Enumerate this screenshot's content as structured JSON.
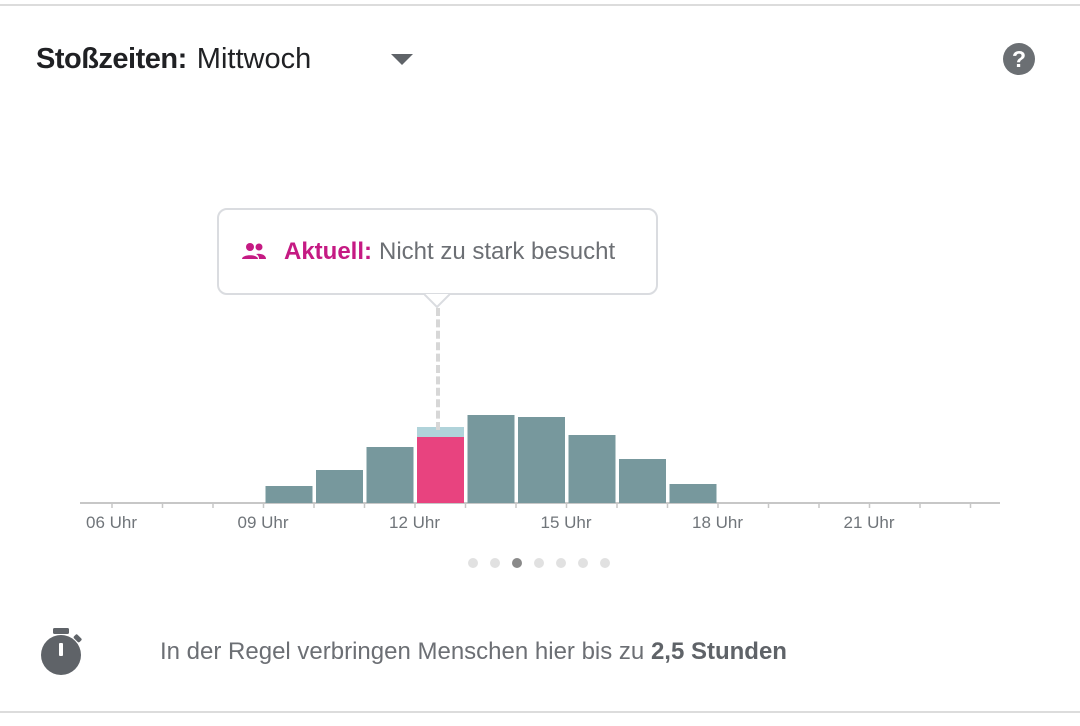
{
  "header": {
    "title_label": "Stoßzeiten:",
    "day_value": "Mittwoch"
  },
  "tooltip": {
    "label": "Aktuell:",
    "text": "Nicht zu stark besucht",
    "icon": "people-icon"
  },
  "icons": {
    "help": "help-icon",
    "dropdown": "chevron-down-icon",
    "timer": "timer-icon"
  },
  "colors": {
    "bar": "#77989d",
    "live_bar": "#e8437f",
    "usual_overlay": "#b0d3da",
    "accent": "#c51a83"
  },
  "chart_data": {
    "type": "bar",
    "x_tick_labels": [
      "06 Uhr",
      "09 Uhr",
      "12 Uhr",
      "15 Uhr",
      "18 Uhr",
      "21 Uhr"
    ],
    "hours": [
      6,
      7,
      8,
      9,
      10,
      11,
      12,
      13,
      14,
      15,
      16,
      17,
      18,
      19,
      20,
      21,
      22,
      23
    ],
    "values": [
      0,
      0,
      0,
      17,
      33,
      56,
      76,
      88,
      86,
      68,
      44,
      19,
      0,
      0,
      0,
      0,
      0,
      0
    ],
    "current_hour": 12,
    "current_live_value": 66,
    "ylim": [
      0,
      100
    ]
  },
  "pager": {
    "count": 7,
    "active_index": 2
  },
  "duration": {
    "text": "In der Regel verbringen Menschen hier bis zu",
    "bold": "2,5 Stunden"
  }
}
